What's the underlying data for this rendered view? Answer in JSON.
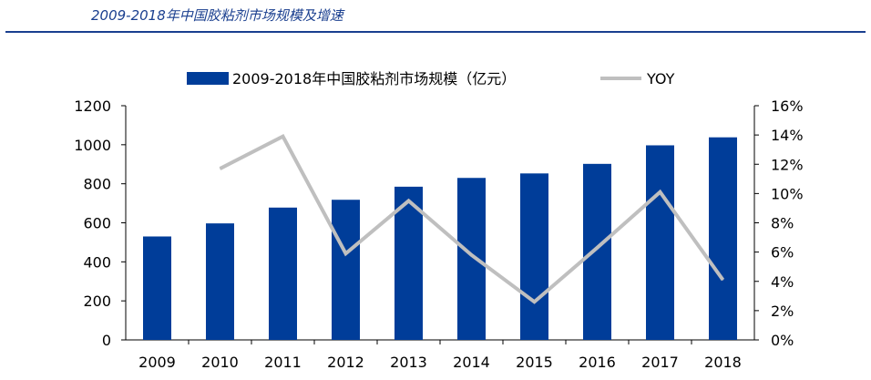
{
  "header": {
    "title": "2009-2018年中国胶粘剂市场规模及增速"
  },
  "chart_data": {
    "type": "bar",
    "title": "2009-2018年中国胶粘剂市场规模及增速",
    "categories": [
      "2009",
      "2010",
      "2011",
      "2012",
      "2013",
      "2014",
      "2015",
      "2016",
      "2017",
      "2018"
    ],
    "series": [
      {
        "name": "2009-2018年中国胶粘剂市场规模（亿元）",
        "type": "bar",
        "axis": "left",
        "values": [
          530,
          597,
          678,
          718,
          785,
          830,
          853,
          902,
          997,
          1038
        ],
        "color": "#003d99"
      },
      {
        "name": "YOY",
        "type": "line",
        "axis": "right",
        "values": [
          null,
          11.7,
          13.9,
          5.9,
          9.5,
          5.8,
          2.6,
          6.3,
          10.1,
          4.1
        ],
        "color": "#bfbfbf"
      }
    ],
    "y_left": {
      "min": 0,
      "max": 1200,
      "ticks": [
        "0",
        "200",
        "400",
        "600",
        "800",
        "1000",
        "1200"
      ]
    },
    "y_right": {
      "min": 0,
      "max": 16,
      "ticks": [
        "0%",
        "2%",
        "4%",
        "6%",
        "8%",
        "10%",
        "12%",
        "14%",
        "16%"
      ]
    },
    "legend_position": "top",
    "grid": false
  }
}
